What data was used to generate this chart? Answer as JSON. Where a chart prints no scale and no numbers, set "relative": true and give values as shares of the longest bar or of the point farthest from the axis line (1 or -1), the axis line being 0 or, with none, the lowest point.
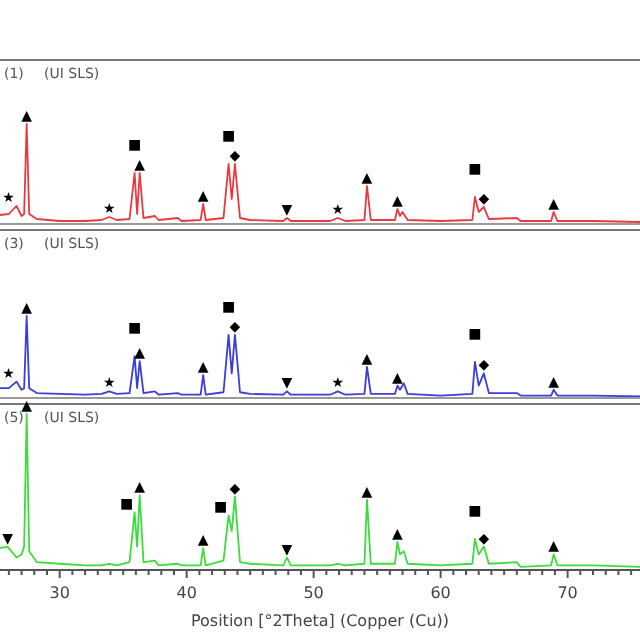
{
  "chart_data": [
    {
      "type": "line",
      "relative": true,
      "xlim": [
        25.3,
        75.7
      ],
      "tick_labels": false,
      "annotations": [
        "(1)",
        "(UI SLS)",
        {
          "text": "★",
          "x": 26.6,
          "y": 0.18
        },
        {
          "text": "▲",
          "x": 27.4,
          "y": 1
        },
        {
          "text": "★",
          "x": 33.9,
          "y": 0.07
        },
        {
          "text": "■",
          "x": 35.9,
          "y": 0.51
        },
        {
          "text": "▲",
          "x": 36.3,
          "y": 0.51
        },
        {
          "text": "▲",
          "x": 41.3,
          "y": 0.2
        },
        {
          "text": "■",
          "x": 43.3,
          "y": 0.6
        },
        {
          "text": "◆",
          "x": 43.8,
          "y": 0.6
        },
        {
          "text": "▼",
          "x": 47.9,
          "y": 0.06
        },
        {
          "text": "★",
          "x": 51.9,
          "y": 0.06
        },
        {
          "text": "▲",
          "x": 54.2,
          "y": 0.38
        },
        {
          "text": "▲",
          "x": 56.6,
          "y": 0.15
        },
        {
          "text": "■",
          "x": 62.7,
          "y": 0.27
        },
        {
          "text": "◆",
          "x": 63.4,
          "y": 0.17
        },
        {
          "text": "▲",
          "x": 68.9,
          "y": 0.12
        }
      ],
      "series": [
        {
          "color": "#e8393f",
          "x": [
            25.3,
            26.0,
            26.6,
            27.0,
            27.2,
            27.4,
            27.6,
            28.2,
            30,
            32,
            33.3,
            33.9,
            34.5,
            35.5,
            35.9,
            36.1,
            36.3,
            36.6,
            37.5,
            37.8,
            39.3,
            39.6,
            41.1,
            41.3,
            41.5,
            42.9,
            43.3,
            43.55,
            43.8,
            44.2,
            45,
            47.6,
            47.9,
            48.2,
            51.3,
            51.9,
            52.5,
            54.0,
            54.2,
            54.5,
            56.4,
            56.6,
            56.8,
            57.0,
            57.4,
            60,
            62.5,
            62.7,
            63.0,
            63.4,
            63.8,
            66.0,
            66.3,
            68.7,
            68.9,
            69.2,
            72,
            75.7
          ],
          "values": [
            0.09,
            0.1,
            0.18,
            0.08,
            0.1,
            1,
            0.1,
            0.05,
            0.03,
            0.03,
            0.04,
            0.07,
            0.04,
            0.05,
            0.51,
            0.1,
            0.51,
            0.06,
            0.08,
            0.04,
            0.06,
            0.03,
            0.04,
            0.2,
            0.04,
            0.06,
            0.6,
            0.25,
            0.6,
            0.06,
            0.04,
            0.03,
            0.06,
            0.03,
            0.03,
            0.06,
            0.03,
            0.04,
            0.38,
            0.04,
            0.04,
            0.15,
            0.08,
            0.12,
            0.04,
            0.03,
            0.04,
            0.27,
            0.12,
            0.17,
            0.05,
            0.06,
            0.03,
            0.03,
            0.12,
            0.03,
            0.03,
            0.02
          ]
        }
      ]
    },
    {
      "type": "line",
      "relative": true,
      "xlim": [
        25.3,
        75.7
      ],
      "tick_labels": false,
      "annotations": [
        "(3)",
        "(UI SLS)",
        {
          "text": "★",
          "x": 26.6,
          "y": 0.2
        },
        {
          "text": "▲",
          "x": 27.4,
          "y": 1
        },
        {
          "text": "★",
          "x": 33.9,
          "y": 0.08
        },
        {
          "text": "■",
          "x": 35.9,
          "y": 0.51
        },
        {
          "text": "▲",
          "x": 36.3,
          "y": 0.45
        },
        {
          "text": "▲",
          "x": 41.3,
          "y": 0.28
        },
        {
          "text": "■",
          "x": 43.3,
          "y": 0.77
        },
        {
          "text": "◆",
          "x": 43.8,
          "y": 0.77
        },
        {
          "text": "▼",
          "x": 47.9,
          "y": 0.08
        },
        {
          "text": "★",
          "x": 51.9,
          "y": 0.08
        },
        {
          "text": "▲",
          "x": 54.2,
          "y": 0.38
        },
        {
          "text": "▲",
          "x": 56.6,
          "y": 0.15
        },
        {
          "text": "■",
          "x": 62.7,
          "y": 0.44
        },
        {
          "text": "◆",
          "x": 63.4,
          "y": 0.3
        },
        {
          "text": "▲",
          "x": 68.9,
          "y": 0.1
        }
      ],
      "series": [
        {
          "color": "#3c3cdc",
          "x": [
            25.3,
            26.0,
            26.6,
            27.0,
            27.2,
            27.4,
            27.6,
            28.2,
            30,
            32,
            33.3,
            33.9,
            34.5,
            35.5,
            35.9,
            36.1,
            36.3,
            36.6,
            37.5,
            37.8,
            39.3,
            39.6,
            41.1,
            41.3,
            41.5,
            42.9,
            43.3,
            43.55,
            43.8,
            44.2,
            45,
            47.6,
            47.9,
            48.2,
            51.3,
            51.9,
            52.5,
            54.0,
            54.2,
            54.5,
            56.4,
            56.6,
            56.8,
            57.1,
            57.4,
            60,
            62.5,
            62.7,
            63.0,
            63.4,
            63.8,
            66.0,
            66.3,
            68.7,
            68.9,
            69.2,
            72,
            75.7
          ],
          "values": [
            0.12,
            0.12,
            0.2,
            0.1,
            0.12,
            1,
            0.12,
            0.06,
            0.05,
            0.04,
            0.05,
            0.08,
            0.05,
            0.06,
            0.51,
            0.12,
            0.45,
            0.06,
            0.08,
            0.04,
            0.06,
            0.04,
            0.04,
            0.28,
            0.04,
            0.07,
            0.77,
            0.3,
            0.77,
            0.07,
            0.05,
            0.04,
            0.08,
            0.04,
            0.04,
            0.08,
            0.04,
            0.05,
            0.38,
            0.05,
            0.05,
            0.15,
            0.1,
            0.18,
            0.05,
            0.03,
            0.05,
            0.44,
            0.15,
            0.3,
            0.06,
            0.06,
            0.03,
            0.03,
            0.1,
            0.03,
            0.03,
            0.02
          ]
        }
      ]
    },
    {
      "type": "line",
      "relative": true,
      "xlim": [
        25.3,
        75.7
      ],
      "tick_labels": "x",
      "xlabel": "Position [°2Theta] (Copper (Cu))",
      "xticks": [
        {
          "value": 26,
          "label": null
        },
        {
          "value": 27,
          "label": null
        },
        {
          "value": 28,
          "label": null
        },
        {
          "value": 29,
          "label": null
        },
        30,
        {
          "value": 31,
          "label": null
        },
        {
          "value": 32,
          "label": null
        },
        {
          "value": 33,
          "label": null
        },
        {
          "value": 34,
          "label": null
        },
        {
          "value": 35,
          "label": null
        },
        {
          "value": 36,
          "label": null
        },
        {
          "value": 37,
          "label": null
        },
        {
          "value": 38,
          "label": null
        },
        {
          "value": 39,
          "label": null
        },
        40,
        {
          "value": 41,
          "label": null
        },
        {
          "value": 42,
          "label": null
        },
        {
          "value": 43,
          "label": null
        },
        {
          "value": 44,
          "label": null
        },
        {
          "value": 45,
          "label": null
        },
        {
          "value": 46,
          "label": null
        },
        {
          "value": 47,
          "label": null
        },
        {
          "value": 48,
          "label": null
        },
        {
          "value": 49,
          "label": null
        },
        50,
        {
          "value": 51,
          "label": null
        },
        {
          "value": 52,
          "label": null
        },
        {
          "value": 53,
          "label": null
        },
        {
          "value": 54,
          "label": null
        },
        {
          "value": 55,
          "label": null
        },
        {
          "value": 56,
          "label": null
        },
        {
          "value": 57,
          "label": null
        },
        {
          "value": 58,
          "label": null
        },
        {
          "value": 59,
          "label": null
        },
        60,
        {
          "value": 61,
          "label": null
        },
        {
          "value": 62,
          "label": null
        },
        {
          "value": 63,
          "label": null
        },
        {
          "value": 64,
          "label": null
        },
        {
          "value": 65,
          "label": null
        },
        {
          "value": 66,
          "label": null
        },
        {
          "value": 67,
          "label": null
        },
        {
          "value": 68,
          "label": null
        },
        {
          "value": 69,
          "label": null
        },
        70,
        {
          "value": 71,
          "label": null
        },
        {
          "value": 72,
          "label": null
        },
        {
          "value": 73,
          "label": null
        },
        {
          "value": 74,
          "label": null
        },
        {
          "value": 75,
          "label": null
        }
      ],
      "annotations": [
        "(5)",
        "(UI SLS)",
        {
          "text": "▼",
          "x": 25.9,
          "y": 0.15
        },
        {
          "text": "▲",
          "x": 27.4,
          "y": 1
        },
        {
          "text": "■",
          "x": 35.9,
          "y": 0.37
        },
        {
          "text": "▲",
          "x": 36.3,
          "y": 0.48
        },
        {
          "text": "▲",
          "x": 41.3,
          "y": 0.14
        },
        {
          "text": "■",
          "x": 43.3,
          "y": 0.35
        },
        {
          "text": "◆",
          "x": 43.8,
          "y": 0.47
        },
        {
          "text": "▼",
          "x": 47.9,
          "y": 0.08
        },
        {
          "text": "▲",
          "x": 54.2,
          "y": 0.45
        },
        {
          "text": "▲",
          "x": 56.6,
          "y": 0.18
        },
        {
          "text": "■",
          "x": 62.7,
          "y": 0.2
        },
        {
          "text": "◆",
          "x": 63.4,
          "y": 0.15
        },
        {
          "text": "▲",
          "x": 68.9,
          "y": 0.1
        }
      ],
      "series": [
        {
          "color": "#3ddc3d",
          "x": [
            25.3,
            25.9,
            26.6,
            27.0,
            27.2,
            27.4,
            27.6,
            28.2,
            30,
            32,
            33.3,
            33.9,
            34.5,
            35.5,
            35.9,
            36.1,
            36.3,
            36.6,
            37.5,
            37.8,
            39.3,
            39.6,
            41.1,
            41.3,
            41.5,
            42.9,
            43.3,
            43.55,
            43.8,
            44.2,
            45,
            47.6,
            47.9,
            48.2,
            51.3,
            51.9,
            52.5,
            54.0,
            54.2,
            54.5,
            56.4,
            56.6,
            56.8,
            57.1,
            57.4,
            60,
            62.5,
            62.7,
            63.0,
            63.4,
            63.8,
            66.0,
            66.3,
            68.7,
            68.9,
            69.2,
            72,
            75.7
          ],
          "values": [
            0.14,
            0.15,
            0.08,
            0.1,
            0.15,
            1,
            0.12,
            0.05,
            0.04,
            0.03,
            0.03,
            0.04,
            0.03,
            0.05,
            0.37,
            0.15,
            0.48,
            0.05,
            0.06,
            0.03,
            0.04,
            0.03,
            0.03,
            0.14,
            0.03,
            0.06,
            0.35,
            0.25,
            0.47,
            0.05,
            0.04,
            0.03,
            0.08,
            0.03,
            0.03,
            0.04,
            0.03,
            0.04,
            0.45,
            0.04,
            0.04,
            0.18,
            0.1,
            0.12,
            0.04,
            0.03,
            0.04,
            0.2,
            0.1,
            0.15,
            0.04,
            0.05,
            0.02,
            0.03,
            0.1,
            0.03,
            0.03,
            0.02
          ]
        }
      ]
    }
  ]
}
